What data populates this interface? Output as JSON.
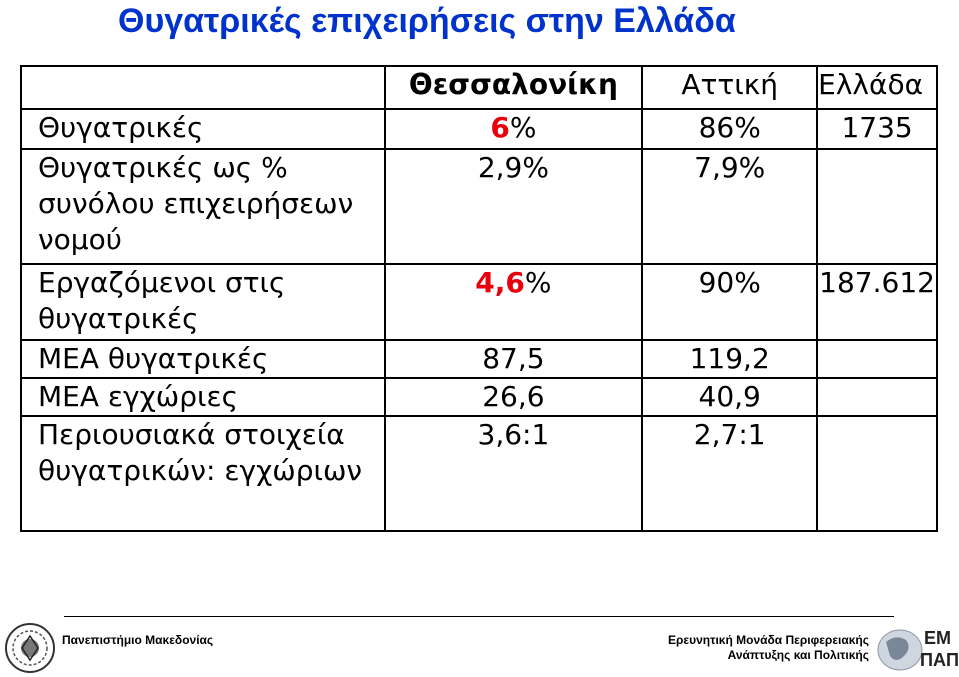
{
  "title": "Θυγατρικές επιχειρήσεις στην Ελλάδα",
  "table": {
    "headers": [
      "",
      "Θεσσαλονίκη",
      "Αττική",
      "Ελλάδα"
    ],
    "rows": [
      {
        "label": "Θυγατρικές",
        "thess_num": "6",
        "thess_unit": "%",
        "attiki": "86%",
        "ellada": "1735"
      },
      {
        "label": "Θυγατρικές ως % συνόλου επιχειρήσεων νομού",
        "thess": "2,9%",
        "attiki": "7,9%",
        "ellada": ""
      },
      {
        "label": "Εργαζόμενοι στις θυγατρικές",
        "thess_num": "4,6",
        "thess_unit": "%",
        "attiki": "90%",
        "ellada": "187.612"
      },
      {
        "label": "ΜΕΑ θυγατρικές",
        "thess": "87,5",
        "attiki": "119,2",
        "ellada": ""
      },
      {
        "label": "ΜΕΑ εγχώριες",
        "thess": "26,6",
        "attiki": "40,9",
        "ellada": ""
      },
      {
        "label": "Περιουσιακά στοιχεία θυγατρικών: εγχώριων",
        "thess": "3,6:1",
        "attiki": "2,7:1",
        "ellada": ""
      }
    ]
  },
  "footer": {
    "left": "Πανεπιστήμιο Μακεδονίας",
    "right_line1": "Ερευνητική Μονάδα Περιφερειακής",
    "right_line2": "Ανάπτυξης και Πολιτικής",
    "logo_right_text_1": "ΕΜ",
    "logo_right_text_2": "ΠΑΠ"
  },
  "colors": {
    "title": "#0033cc",
    "highlight": "#e8000c"
  }
}
